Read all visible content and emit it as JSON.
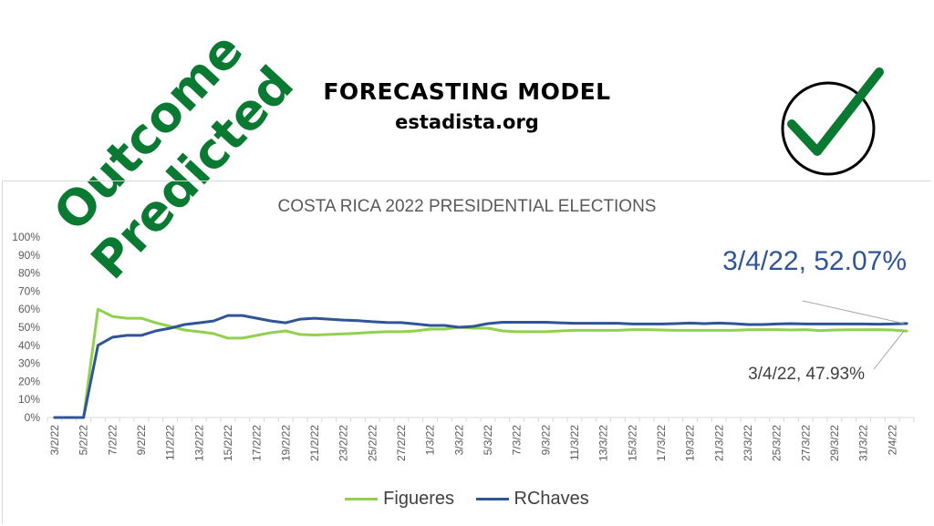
{
  "header": {
    "title": "FORECASTING MODEL",
    "subtitle": "estadista.org"
  },
  "stamp": {
    "line1": "Outcome",
    "line2": "Predicted",
    "color": "#0a7a33"
  },
  "icons": {
    "check": "check-circle-icon"
  },
  "chart_data": {
    "type": "line",
    "title": "COSTA RICA 2022 PRESIDENTIAL ELECTIONS",
    "xlabel": "",
    "ylabel": "",
    "ylim": [
      0,
      100
    ],
    "y_ticks": [
      "0%",
      "10%",
      "20%",
      "30%",
      "40%",
      "50%",
      "60%",
      "70%",
      "80%",
      "90%",
      "100%"
    ],
    "x_tick_labels": [
      "3/2/22",
      "5/2/22",
      "7/2/22",
      "9/2/22",
      "11/2/22",
      "13/2/22",
      "15/2/22",
      "17/2/22",
      "19/2/22",
      "21/2/22",
      "23/2/22",
      "25/2/22",
      "27/2/22",
      "1/3/22",
      "3/3/22",
      "5/3/22",
      "7/3/22",
      "9/3/22",
      "11/3/22",
      "13/3/22",
      "15/3/22",
      "17/3/22",
      "19/3/22",
      "21/3/22",
      "23/3/22",
      "25/3/22",
      "27/3/22",
      "29/3/22",
      "31/3/22",
      "2/4/22"
    ],
    "x": [
      "3/2/22",
      "4/2/22",
      "5/2/22",
      "6/2/22",
      "7/2/22",
      "8/2/22",
      "9/2/22",
      "10/2/22",
      "11/2/22",
      "12/2/22",
      "13/2/22",
      "14/2/22",
      "15/2/22",
      "16/2/22",
      "17/2/22",
      "18/2/22",
      "19/2/22",
      "20/2/22",
      "21/2/22",
      "22/2/22",
      "23/2/22",
      "24/2/22",
      "25/2/22",
      "26/2/22",
      "27/2/22",
      "28/2/22",
      "1/3/22",
      "2/3/22",
      "3/3/22",
      "4/3/22",
      "5/3/22",
      "6/3/22",
      "7/3/22",
      "8/3/22",
      "9/3/22",
      "10/3/22",
      "11/3/22",
      "12/3/22",
      "13/3/22",
      "14/3/22",
      "15/3/22",
      "16/3/22",
      "17/3/22",
      "18/3/22",
      "19/3/22",
      "20/3/22",
      "21/3/22",
      "22/3/22",
      "23/3/22",
      "24/3/22",
      "25/3/22",
      "26/3/22",
      "27/3/22",
      "28/3/22",
      "29/3/22",
      "30/3/22",
      "31/3/22",
      "1/4/22",
      "2/4/22",
      "3/4/22"
    ],
    "series": [
      {
        "name": "Figueres",
        "color": "#92d050",
        "values": [
          0,
          0,
          0,
          60,
          56,
          55,
          55,
          52.5,
          50.5,
          48.5,
          47.5,
          46.5,
          44,
          44,
          45.5,
          47,
          48,
          46,
          45.7,
          46,
          46.3,
          46.7,
          47.2,
          47.5,
          47.5,
          48,
          49,
          49,
          50,
          49.5,
          49.5,
          48,
          47.5,
          47.5,
          47.5,
          48,
          48.3,
          48.3,
          48.3,
          48.3,
          48.7,
          48.7,
          48.5,
          48.3,
          48.3,
          48.3,
          48.3,
          48.3,
          48.6,
          48.7,
          48.7,
          48.5,
          48.7,
          48.2,
          48.5,
          48.6,
          48.6,
          48.7,
          48.5,
          47.93
        ]
      },
      {
        "name": "RChaves",
        "color": "#2f5597",
        "values": [
          0,
          0,
          0,
          40,
          44.5,
          45.5,
          45.5,
          48,
          49.5,
          51.5,
          52.5,
          53.5,
          56.5,
          56.5,
          55,
          53.5,
          52.5,
          54.5,
          55,
          54.5,
          54,
          53.7,
          53.1,
          52.7,
          52.6,
          51.8,
          51,
          51,
          50,
          50.5,
          52,
          52.8,
          52.8,
          52.8,
          52.8,
          52.5,
          52.2,
          52.2,
          52.2,
          52.2,
          51.8,
          51.8,
          51.8,
          52,
          52.3,
          52,
          52.3,
          52,
          51.5,
          51.5,
          51.8,
          52,
          51.8,
          51.8,
          51.8,
          51.8,
          51.8,
          51.7,
          51.8,
          52.07
        ]
      }
    ],
    "annotations": [
      {
        "text": "3/4/22, 52.07%",
        "series": "RChaves",
        "color": "#2f5597"
      },
      {
        "text": "3/4/22, 47.93%",
        "series": "Figueres",
        "color": "#404040"
      }
    ],
    "legend_position": "bottom",
    "grid": false
  }
}
